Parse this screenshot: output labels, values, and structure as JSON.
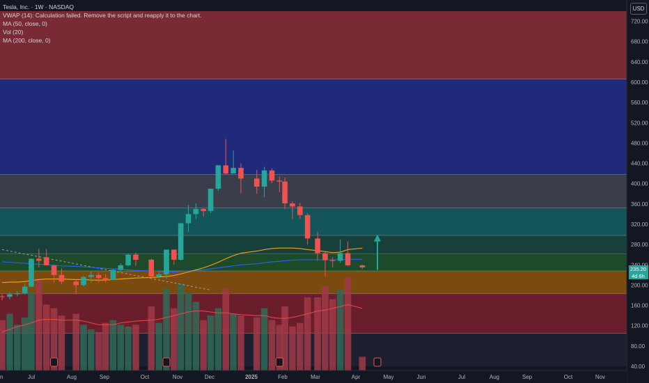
{
  "legend": {
    "title": "Tesla, Inc. · 1W · NASDAQ",
    "vwap": "VWAP (14): Calculation failed. Remove the script and reapply it to the chart.",
    "ma50": "MA (50, close, 0)",
    "vol": "Vol (20)",
    "ma200": "MA (200, close, 0)"
  },
  "currency": "USD",
  "colors": {
    "up": "#26a69a",
    "down": "#ef5350",
    "ma50": "#f7a21b",
    "ma200": "#2962ff",
    "arrow": "#26a69a",
    "background": "#131722"
  },
  "chart_data": {
    "type": "candlestick",
    "ylim": [
      40,
      740
    ],
    "y_ticks": [
      720,
      680,
      640,
      600,
      560,
      520,
      480,
      440,
      400,
      360,
      320,
      280,
      240,
      200,
      160,
      120,
      80,
      40
    ],
    "x_labels": [
      "Jun",
      "Jul",
      "Aug",
      "Sep",
      "Oct",
      "Nov",
      "Dec",
      "2025",
      "Feb",
      "Mar",
      "Apr",
      "May",
      "Jun",
      "Jul",
      "Aug",
      "Sep",
      "Oct",
      "Nov"
    ],
    "price_badges": [
      "235.20",
      "4d 6h"
    ],
    "zones": [
      {
        "from": 606,
        "to": 740,
        "color": "#7a2a35"
      },
      {
        "from": 418,
        "to": 606,
        "color": "#1f2b7a"
      },
      {
        "from": 352,
        "to": 418,
        "color": "#3a3d4a"
      },
      {
        "from": 298,
        "to": 352,
        "color": "#14555a"
      },
      {
        "from": 262,
        "to": 298,
        "color": "#18403a"
      },
      {
        "from": 228,
        "to": 262,
        "color": "#1e4a2c"
      },
      {
        "from": 183,
        "to": 228,
        "color": "#7a4a0e"
      },
      {
        "from": 105,
        "to": 183,
        "color": "#6a1e2c"
      },
      {
        "from": 40,
        "to": 105,
        "color": "#1c2030"
      }
    ],
    "lines": [
      606,
      418,
      352,
      298,
      262,
      228,
      183,
      105
    ],
    "candles": [
      {
        "x": "Jun 03",
        "o": 178,
        "h": 182,
        "l": 170,
        "c": 177
      },
      {
        "x": "Jun 10",
        "o": 177,
        "h": 186,
        "l": 172,
        "c": 182
      },
      {
        "x": "Jun 17",
        "o": 182,
        "h": 188,
        "l": 178,
        "c": 184
      },
      {
        "x": "Jun 24",
        "o": 184,
        "h": 203,
        "l": 182,
        "c": 197
      },
      {
        "x": "Jul 01",
        "o": 197,
        "h": 252,
        "l": 196,
        "c": 252
      },
      {
        "x": "Jul 08",
        "o": 252,
        "h": 272,
        "l": 235,
        "c": 248
      },
      {
        "x": "Jul 15",
        "o": 255,
        "h": 271,
        "l": 246,
        "c": 239
      },
      {
        "x": "Jul 22",
        "o": 239,
        "h": 240,
        "l": 205,
        "c": 220
      },
      {
        "x": "Jul 29",
        "o": 220,
        "h": 233,
        "l": 202,
        "c": 207
      },
      {
        "x": "Aug 05",
        "o": 207,
        "h": 212,
        "l": 182,
        "c": 200
      },
      {
        "x": "Aug 12",
        "o": 200,
        "h": 218,
        "l": 197,
        "c": 216
      },
      {
        "x": "Aug 19",
        "o": 216,
        "h": 228,
        "l": 205,
        "c": 220
      },
      {
        "x": "Aug 26",
        "o": 220,
        "h": 225,
        "l": 205,
        "c": 214
      },
      {
        "x": "Sep 02",
        "o": 214,
        "h": 222,
        "l": 205,
        "c": 210
      },
      {
        "x": "Sep 09",
        "o": 210,
        "h": 232,
        "l": 210,
        "c": 230
      },
      {
        "x": "Sep 16",
        "o": 230,
        "h": 243,
        "l": 225,
        "c": 239
      },
      {
        "x": "Sep 23",
        "o": 239,
        "h": 262,
        "l": 237,
        "c": 260
      },
      {
        "x": "Sep 30",
        "o": 260,
        "h": 264,
        "l": 238,
        "c": 250
      },
      {
        "x": "Oct 07",
        "o": 250,
        "h": 252,
        "l": 214,
        "c": 217
      },
      {
        "x": "Oct 14",
        "o": 217,
        "h": 225,
        "l": 214,
        "c": 221
      },
      {
        "x": "Oct 21",
        "o": 221,
        "h": 270,
        "l": 212,
        "c": 270
      },
      {
        "x": "Oct 28",
        "o": 270,
        "h": 270,
        "l": 240,
        "c": 250
      },
      {
        "x": "Nov 04",
        "o": 250,
        "h": 322,
        "l": 248,
        "c": 322
      },
      {
        "x": "Nov 11",
        "o": 322,
        "h": 358,
        "l": 305,
        "c": 340
      },
      {
        "x": "Nov 18",
        "o": 340,
        "h": 361,
        "l": 330,
        "c": 350
      },
      {
        "x": "Nov 25",
        "o": 350,
        "h": 352,
        "l": 335,
        "c": 346
      },
      {
        "x": "Dec 02",
        "o": 346,
        "h": 390,
        "l": 342,
        "c": 390
      },
      {
        "x": "Dec 09",
        "o": 390,
        "h": 437,
        "l": 386,
        "c": 436
      },
      {
        "x": "Dec 16",
        "o": 436,
        "h": 488,
        "l": 418,
        "c": 420
      },
      {
        "x": "Dec 23",
        "o": 420,
        "h": 465,
        "l": 420,
        "c": 431
      },
      {
        "x": "Dec 30",
        "o": 431,
        "h": 440,
        "l": 381,
        "c": 410
      },
      {
        "x": "Jan 06",
        "o": 410,
        "h": 427,
        "l": 380,
        "c": 394
      },
      {
        "x": "Jan 13",
        "o": 394,
        "h": 433,
        "l": 373,
        "c": 426
      },
      {
        "x": "Jan 20",
        "o": 426,
        "h": 430,
        "l": 401,
        "c": 406
      },
      {
        "x": "Jan 27",
        "o": 406,
        "h": 414,
        "l": 383,
        "c": 404
      },
      {
        "x": "Feb 03",
        "o": 404,
        "h": 412,
        "l": 350,
        "c": 361
      },
      {
        "x": "Feb 10",
        "o": 361,
        "h": 365,
        "l": 330,
        "c": 355
      },
      {
        "x": "Feb 17",
        "o": 355,
        "h": 362,
        "l": 330,
        "c": 338
      },
      {
        "x": "Feb 24",
        "o": 338,
        "h": 342,
        "l": 280,
        "c": 292
      },
      {
        "x": "Mar 03",
        "o": 292,
        "h": 305,
        "l": 248,
        "c": 263
      },
      {
        "x": "Mar 10",
        "o": 263,
        "h": 265,
        "l": 217,
        "c": 249
      },
      {
        "x": "Mar 17",
        "o": 249,
        "h": 255,
        "l": 235,
        "c": 248
      },
      {
        "x": "Mar 24",
        "o": 248,
        "h": 290,
        "l": 244,
        "c": 263
      },
      {
        "x": "Mar 31",
        "o": 263,
        "h": 286,
        "l": 238,
        "c": 239
      },
      {
        "x": "Apr 07",
        "o": 239,
        "h": 240,
        "l": 232,
        "c": 235
      }
    ],
    "volume_top_price": 212,
    "volume_relative": [
      0.55,
      0.62,
      0.5,
      0.58,
      0.85,
      1.0,
      0.72,
      0.68,
      0.6,
      0.62,
      0.5,
      0.45,
      0.42,
      0.52,
      0.55,
      0.5,
      0.48,
      0.5,
      0.7,
      0.52,
      0.9,
      0.68,
      0.95,
      0.85,
      0.75,
      0.55,
      0.6,
      0.68,
      0.9,
      0.62,
      0.6,
      0.58,
      0.68,
      0.55,
      0.5,
      0.7,
      0.48,
      0.52,
      0.8,
      0.8,
      0.92,
      0.78,
      0.88,
      1.02,
      0.15
    ],
    "vol_ma_relative": [
      0.42,
      0.45,
      0.48,
      0.5,
      0.52,
      0.55,
      0.56,
      0.56,
      0.55,
      0.55,
      0.54,
      0.52,
      0.5,
      0.5,
      0.5,
      0.52,
      0.53,
      0.54,
      0.55,
      0.56,
      0.58,
      0.6,
      0.62,
      0.64,
      0.65,
      0.65,
      0.64,
      0.63,
      0.63,
      0.62,
      0.61,
      0.6,
      0.6,
      0.58,
      0.57,
      0.57,
      0.58,
      0.6,
      0.62,
      0.65,
      0.66,
      0.68,
      0.7,
      0.72,
      0.68
    ],
    "ma50": [
      205,
      206,
      206,
      207,
      209,
      211,
      212,
      212,
      212,
      211,
      211,
      210,
      210,
      210,
      211,
      212,
      213,
      214,
      215,
      216,
      217,
      219,
      222,
      226,
      230,
      234,
      239,
      245,
      252,
      258,
      263,
      267,
      270,
      272,
      273,
      273,
      273,
      272,
      270,
      268,
      266,
      264,
      265,
      270,
      273
    ],
    "ma200": [
      246,
      245,
      244,
      243,
      242,
      241,
      240,
      239,
      238,
      237,
      236,
      235,
      234,
      233,
      232,
      231,
      230,
      229,
      228,
      227,
      226,
      226,
      227,
      228,
      229,
      230,
      232,
      234,
      236,
      238,
      240,
      242,
      244,
      246,
      247,
      248,
      249,
      250,
      250,
      250,
      250,
      250,
      250,
      251,
      251
    ],
    "dashed_trendline": [
      {
        "x": "Jun 03",
        "y": 270
      },
      {
        "x": "Nov 30",
        "y": 191
      }
    ],
    "arrow": {
      "x": "Apr 21",
      "from": 230,
      "to": 300
    }
  }
}
